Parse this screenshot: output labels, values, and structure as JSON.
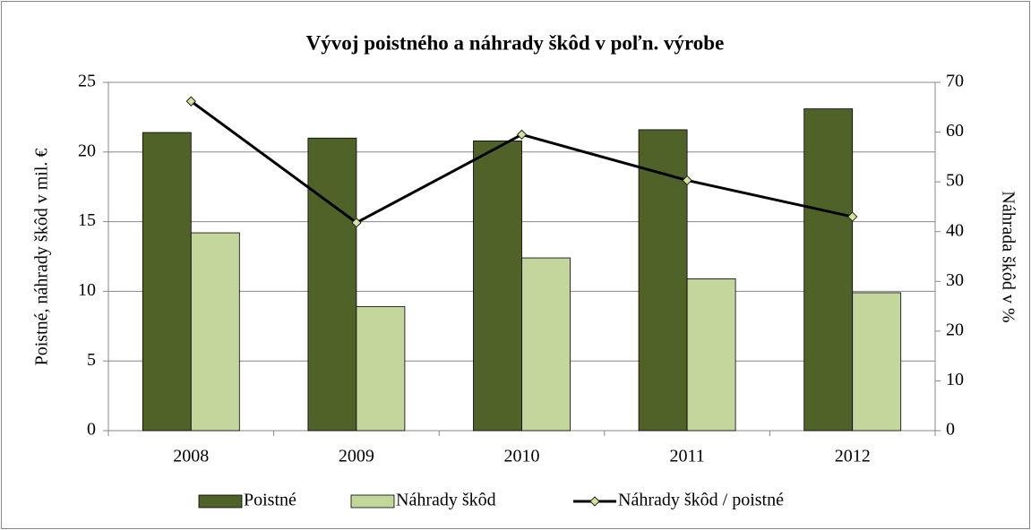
{
  "chart_data": {
    "type": "bar",
    "title": "Vývoj poistného a náhrady škôd v poľn. výrobe",
    "y_label": "Poistné, náhrady škôd v  mil. €",
    "y2_label": "Náhrada škôd v %",
    "categories": [
      "2008",
      "2009",
      "2010",
      "2011",
      "2012"
    ],
    "series": [
      {
        "name": "Poistné",
        "color": "#4f6228",
        "values": [
          21.4,
          21.0,
          20.8,
          21.6,
          23.1
        ]
      },
      {
        "name": "Náhrady škôd",
        "color": "#c3d69b",
        "values": [
          14.2,
          8.9,
          12.4,
          10.9,
          9.9
        ]
      },
      {
        "name": "Náhrady škôd / poistné",
        "type": "line",
        "axis": "y2",
        "color": "#000000",
        "marker_color": "#d4e39a",
        "values": [
          66.2,
          41.8,
          59.5,
          50.3,
          43.0
        ]
      }
    ],
    "ylim": [
      0,
      25
    ],
    "yticks": [
      0,
      5,
      10,
      15,
      20,
      25
    ],
    "y2lim": [
      0,
      70
    ],
    "y2ticks": [
      0,
      10,
      20,
      30,
      40,
      50,
      60,
      70
    ],
    "grid": true,
    "legend": "bottom"
  }
}
